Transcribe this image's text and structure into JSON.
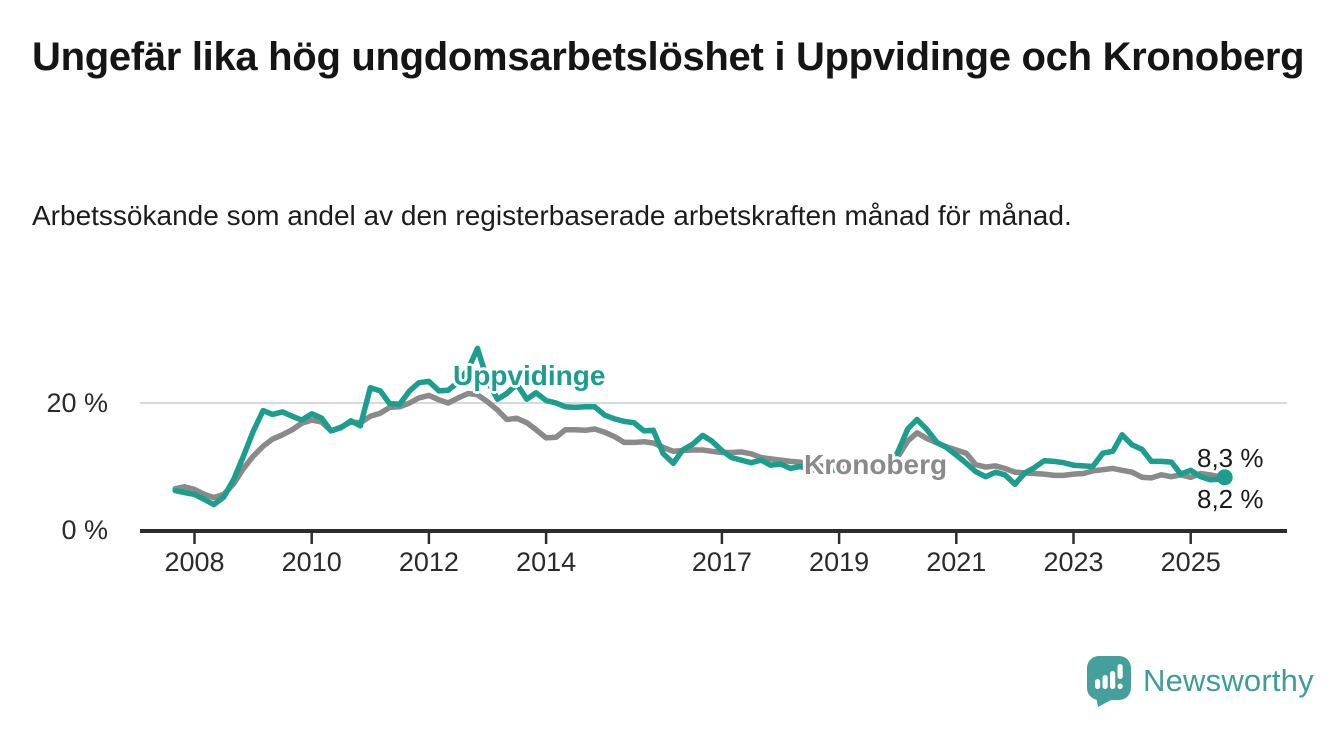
{
  "header": {
    "title": "Ungefär lika hög ungdomsarbetslöshet i Uppvidinge och Kronoberg",
    "subtitle": "Arbetssökande som andel av den registerbaserade arbetskraften månad för månad."
  },
  "footer": {
    "brand": "Newsworthy"
  },
  "colors": {
    "uppvidinge": "#1b9e8d",
    "kronoberg": "#8a8a8a",
    "axis": "#2d2d2d",
    "grid": "#d9d9d9",
    "tick_text": "#2b2b2b",
    "end_label_text": "#1a1a1a",
    "brand_teal": "#45a09b",
    "brand_text_teal": "#3f9d98"
  },
  "chart_data": {
    "type": "line",
    "unit": "%",
    "title": "Ungefär lika hög ungdomsarbetslöshet i Uppvidinge och Kronoberg",
    "subtitle": "Arbetssökande som andel av den registerbaserade arbetskraften månad för månad.",
    "grid": "single-line-at-20",
    "legend_position": "inline-labels",
    "x_axis": {
      "ticks": [
        2008,
        2010,
        2012,
        2014,
        2017,
        2019,
        2021,
        2023,
        2025
      ],
      "tick_labels": [
        "2008",
        "2010",
        "2012",
        "2014",
        "2017",
        "2019",
        "2021",
        "2023",
        "2025"
      ],
      "range": [
        2007.6,
        2025.7
      ]
    },
    "y_axis": {
      "ticks": [
        {
          "value": 20,
          "label": "20 %"
        },
        {
          "value": 0,
          "label": "0 %"
        }
      ],
      "gridline_value": 20,
      "range": [
        0,
        30
      ]
    },
    "x": [
      2007.67,
      2007.83,
      2008,
      2008.17,
      2008.33,
      2008.5,
      2008.67,
      2008.83,
      2009,
      2009.17,
      2009.33,
      2009.5,
      2009.67,
      2009.83,
      2010,
      2010.17,
      2010.33,
      2010.5,
      2010.67,
      2010.83,
      2011,
      2011.17,
      2011.33,
      2011.5,
      2011.67,
      2011.83,
      2012,
      2012.17,
      2012.33,
      2012.5,
      2012.67,
      2012.83,
      2013,
      2013.17,
      2013.33,
      2013.5,
      2013.67,
      2013.83,
      2014,
      2014.17,
      2014.33,
      2014.5,
      2014.67,
      2014.83,
      2015,
      2015.17,
      2015.33,
      2015.5,
      2015.67,
      2015.83,
      2016,
      2016.17,
      2016.33,
      2016.5,
      2016.67,
      2016.83,
      2017,
      2017.17,
      2017.33,
      2017.5,
      2017.67,
      2017.83,
      2018,
      2018.17,
      2018.33,
      2018.5,
      2018.67,
      2018.83,
      2019,
      2019.17,
      2019.33,
      2019.5,
      2019.67,
      2019.83,
      2020,
      2020.17,
      2020.33,
      2020.5,
      2020.67,
      2020.83,
      2021,
      2021.17,
      2021.33,
      2021.5,
      2021.67,
      2021.83,
      2022,
      2022.17,
      2022.33,
      2022.5,
      2022.67,
      2022.83,
      2023,
      2023.17,
      2023.33,
      2023.5,
      2023.67,
      2023.83,
      2024,
      2024.17,
      2024.33,
      2024.5,
      2024.67,
      2024.83,
      2025,
      2025.17,
      2025.33,
      2025.5,
      2025.58
    ],
    "series": [
      {
        "name": "Uppvidinge",
        "color": "#1b9e8d",
        "end_label": "8,3 %",
        "end_value": 8.3,
        "values": [
          6.2,
          5.9,
          5.6,
          4.8,
          4.0,
          5.2,
          8.0,
          11.5,
          15.5,
          18.8,
          18.2,
          18.6,
          17.9,
          17.3,
          18.3,
          17.6,
          15.6,
          16.1,
          17.2,
          16.4,
          22.4,
          21.9,
          19.9,
          19.8,
          21.9,
          23.2,
          23.4,
          21.9,
          22.0,
          23.3,
          25.3,
          28.6,
          23.5,
          20.6,
          21.5,
          23.0,
          20.6,
          21.6,
          20.4,
          20.0,
          19.4,
          19.3,
          19.4,
          19.4,
          18.1,
          17.5,
          17.1,
          16.9,
          15.6,
          15.7,
          12.0,
          10.5,
          12.6,
          13.5,
          14.9,
          14.0,
          12.5,
          11.4,
          11.0,
          10.6,
          11.0,
          10.2,
          10.4,
          9.7,
          10.0,
          9.6,
          9.3,
          9.4,
          9.5,
          9.8,
          9.9,
          9.6,
          9.4,
          10.0,
          12.2,
          15.9,
          17.4,
          15.8,
          13.8,
          13.0,
          11.8,
          10.5,
          9.2,
          8.4,
          9.1,
          8.7,
          7.2,
          9.0,
          9.8,
          10.9,
          10.8,
          10.6,
          10.2,
          10.1,
          10.0,
          12.1,
          12.4,
          15.0,
          13.4,
          12.7,
          10.8,
          10.8,
          10.7,
          8.8,
          9.4,
          8.4,
          7.9,
          8.0,
          8.3
        ]
      },
      {
        "name": "Kronoberg",
        "color": "#8a8a8a",
        "end_label": "8,2 %",
        "end_value": 8.2,
        "values": [
          6.5,
          6.8,
          6.4,
          5.6,
          5.1,
          5.6,
          7.3,
          9.6,
          11.6,
          13.2,
          14.3,
          15.0,
          15.8,
          16.8,
          17.3,
          17.0,
          15.6,
          16.2,
          17.0,
          16.9,
          17.9,
          18.4,
          19.3,
          19.4,
          20.0,
          20.8,
          21.2,
          20.5,
          20.0,
          20.8,
          21.5,
          21.3,
          20.2,
          18.9,
          17.4,
          17.6,
          16.9,
          15.8,
          14.5,
          14.6,
          15.8,
          15.8,
          15.7,
          15.9,
          15.4,
          14.7,
          13.8,
          13.8,
          13.9,
          13.7,
          13.0,
          12.4,
          12.5,
          12.6,
          12.6,
          12.4,
          12.2,
          12.2,
          12.3,
          12.0,
          11.4,
          11.2,
          11.0,
          10.8,
          10.7,
          10.4,
          10.1,
          9.9,
          9.8,
          9.6,
          9.5,
          9.4,
          9.5,
          9.9,
          11.5,
          14.0,
          15.3,
          14.4,
          13.7,
          13.1,
          12.6,
          12.1,
          10.3,
          9.9,
          10.1,
          9.7,
          9.1,
          9.0,
          8.9,
          8.8,
          8.6,
          8.6,
          8.8,
          8.9,
          9.3,
          9.5,
          9.7,
          9.4,
          9.1,
          8.3,
          8.2,
          8.7,
          8.4,
          8.7,
          8.3,
          8.9,
          8.7,
          8.4,
          8.2
        ]
      }
    ]
  }
}
